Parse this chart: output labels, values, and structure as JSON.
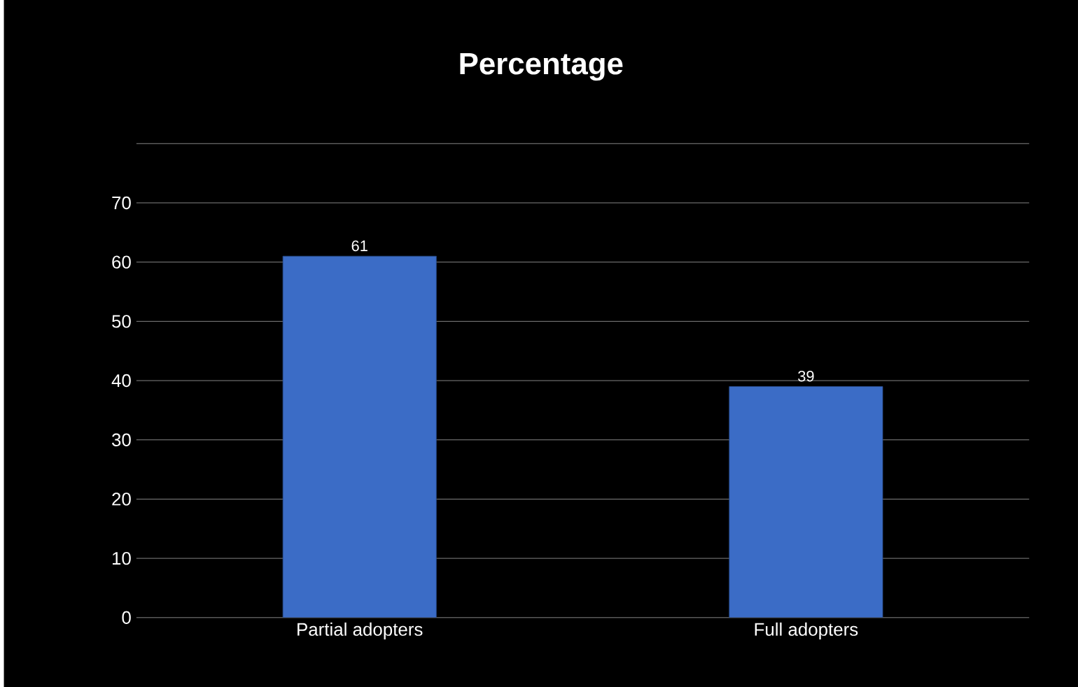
{
  "chart_data": {
    "type": "bar",
    "title": "Percentage",
    "categories": [
      "Partial adopters",
      "Full adopters"
    ],
    "values": [
      61,
      39
    ],
    "color": "#3b6cc6",
    "ylim": [
      0,
      80
    ],
    "yticks": [
      0,
      10,
      20,
      30,
      40,
      50,
      60,
      70,
      {
        "value": 80,
        "label": null
      }
    ],
    "grid": "y",
    "data_labels": true
  }
}
